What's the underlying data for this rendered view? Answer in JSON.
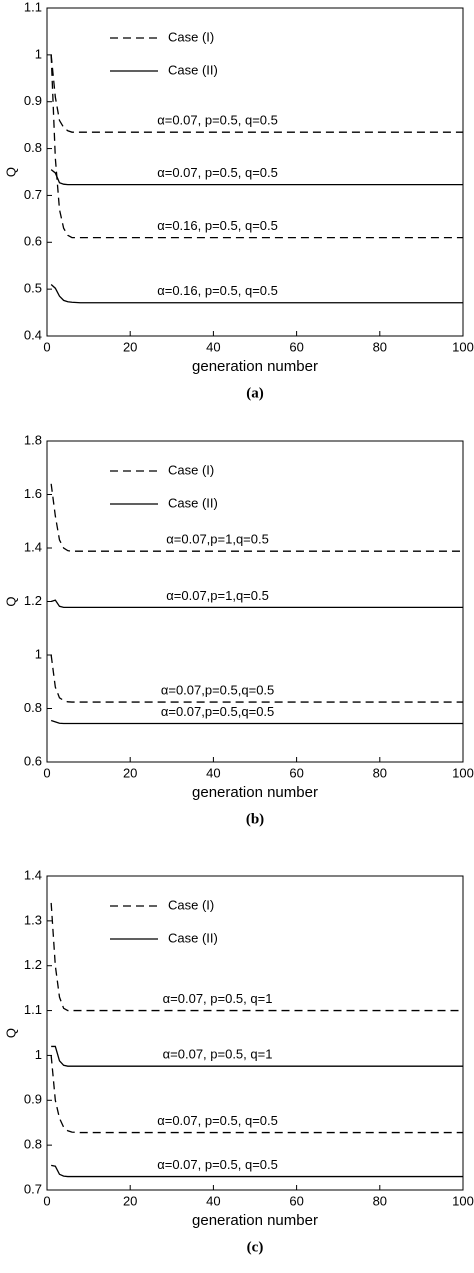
{
  "chart_data": [
    {
      "type": "line",
      "caption": "(a)",
      "xlabel": "generation number",
      "ylabel": "Q",
      "xlim": [
        0,
        100
      ],
      "xticks": [
        0,
        20,
        40,
        60,
        80,
        100
      ],
      "ylim": [
        0.4,
        1.1
      ],
      "yticks": [
        0.4,
        0.5,
        0.6,
        0.7,
        0.8,
        0.9,
        1,
        1.1
      ],
      "legend": [
        {
          "name": "Case (I)",
          "style": "dashed"
        },
        {
          "name": "Case (II)",
          "style": "solid"
        }
      ],
      "series": [
        {
          "label": "α=0.07, p=0.5, q=0.5",
          "style": "dashed",
          "x": [
            1,
            2,
            3,
            4,
            5,
            6,
            8,
            100
          ],
          "values": [
            1.0,
            0.91,
            0.86,
            0.845,
            0.838,
            0.835,
            0.835,
            0.835
          ]
        },
        {
          "label": "α=0.07, p=0.5, q=0.5",
          "style": "solid",
          "x": [
            1,
            2,
            3,
            4,
            5,
            8,
            100
          ],
          "values": [
            0.755,
            0.748,
            0.727,
            0.724,
            0.723,
            0.723,
            0.723
          ]
        },
        {
          "label": "α=0.16, p=0.5, q=0.5",
          "style": "dashed",
          "x": [
            1,
            2,
            3,
            4,
            5,
            6,
            8,
            100
          ],
          "values": [
            1.0,
            0.78,
            0.67,
            0.63,
            0.615,
            0.61,
            0.61,
            0.61
          ]
        },
        {
          "label": "α=0.16, p=0.5, q=0.5",
          "style": "solid",
          "x": [
            1,
            2,
            3,
            4,
            5,
            6,
            8,
            100
          ],
          "values": [
            0.51,
            0.502,
            0.485,
            0.476,
            0.473,
            0.472,
            0.471,
            0.471
          ]
        }
      ]
    },
    {
      "type": "line",
      "caption": "(b)",
      "xlabel": "generation number",
      "ylabel": "Q",
      "xlim": [
        0,
        100
      ],
      "xticks": [
        0,
        20,
        40,
        60,
        80,
        100
      ],
      "ylim": [
        0.6,
        1.8
      ],
      "yticks": [
        0.6,
        0.8,
        1,
        1.2,
        1.4,
        1.6,
        1.8
      ],
      "legend": [
        {
          "name": "Case (I)",
          "style": "dashed"
        },
        {
          "name": "Case (II)",
          "style": "solid"
        }
      ],
      "series": [
        {
          "label": "α=0.07,p=1,q=0.5",
          "style": "dashed",
          "x": [
            1,
            2,
            3,
            4,
            5,
            6,
            100
          ],
          "values": [
            1.64,
            1.52,
            1.43,
            1.4,
            1.39,
            1.388,
            1.388
          ]
        },
        {
          "label": "α=0.07,p=1,q=0.5",
          "style": "solid",
          "x": [
            1,
            2,
            3,
            4,
            5,
            100
          ],
          "values": [
            1.2,
            1.205,
            1.182,
            1.178,
            1.178,
            1.178
          ]
        },
        {
          "label": "α=0.07,p=0.5,q=0.5",
          "style": "dashed",
          "x": [
            1,
            2,
            3,
            4,
            5,
            6,
            100
          ],
          "values": [
            1.0,
            0.88,
            0.84,
            0.83,
            0.825,
            0.824,
            0.824
          ]
        },
        {
          "label": "α=0.07,p=0.5,q=0.5",
          "style": "solid",
          "x": [
            1,
            2,
            3,
            4,
            100
          ],
          "values": [
            0.755,
            0.75,
            0.745,
            0.744,
            0.744
          ]
        }
      ]
    },
    {
      "type": "line",
      "caption": "(c)",
      "xlabel": "generation number",
      "ylabel": "Q",
      "xlim": [
        0,
        100
      ],
      "xticks": [
        0,
        20,
        40,
        60,
        80,
        100
      ],
      "ylim": [
        0.7,
        1.4
      ],
      "yticks": [
        0.7,
        0.8,
        0.9,
        1,
        1.1,
        1.2,
        1.3,
        1.4
      ],
      "legend": [
        {
          "name": "Case (I)",
          "style": "dashed"
        },
        {
          "name": "Case (II)",
          "style": "solid"
        }
      ],
      "series": [
        {
          "label": "α=0.07, p=0.5, q=1",
          "style": "dashed",
          "x": [
            1,
            2,
            3,
            4,
            5,
            6,
            100
          ],
          "values": [
            1.34,
            1.2,
            1.13,
            1.105,
            1.1,
            1.1,
            1.1
          ]
        },
        {
          "label": "α=0.07, p=0.5,  q=1",
          "style": "solid",
          "x": [
            1,
            2,
            3,
            4,
            5,
            6,
            100
          ],
          "values": [
            1.02,
            1.02,
            0.988,
            0.978,
            0.976,
            0.976,
            0.976
          ]
        },
        {
          "label": "α=0.07, p=0.5, q=0.5",
          "style": "dashed",
          "x": [
            1,
            2,
            3,
            4,
            5,
            6,
            8,
            100
          ],
          "values": [
            1.0,
            0.9,
            0.86,
            0.84,
            0.832,
            0.829,
            0.828,
            0.828
          ]
        },
        {
          "label": "α=0.07, p=0.5, q=0.5",
          "style": "solid",
          "x": [
            1,
            2,
            3,
            4,
            5,
            100
          ],
          "values": [
            0.755,
            0.753,
            0.735,
            0.731,
            0.73,
            0.73
          ]
        }
      ]
    }
  ]
}
